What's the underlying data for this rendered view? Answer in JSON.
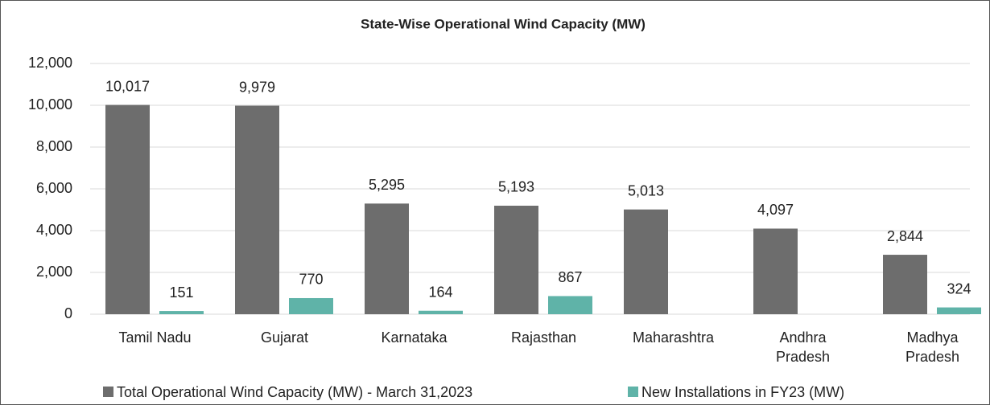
{
  "chart_data": {
    "type": "bar",
    "title": "State-Wise Operational Wind Capacity (MW)",
    "categories": [
      "Tamil Nadu",
      "Gujarat",
      "Karnataka",
      "Rajasthan",
      "Maharashtra",
      "Andhra\nPradesh",
      "Madhya\nPradesh"
    ],
    "series": [
      {
        "name": "Total Operational Wind Capacity (MW) - March 31,2023",
        "color": "#6d6d6d",
        "values": [
          10017,
          9979,
          5295,
          5193,
          5013,
          4097,
          2844
        ],
        "value_labels": [
          "10,017",
          "9,979",
          "5,295",
          "5,193",
          "5,013",
          "4,097",
          "2,844"
        ]
      },
      {
        "name": "New Installations in FY23 (MW)",
        "color": "#5fb3a8",
        "values": [
          151,
          770,
          164,
          867,
          null,
          null,
          324
        ]
      }
    ],
    "ylim": [
      0,
      12000
    ],
    "yticks": [
      0,
      {
        "value": 2000,
        "label": "2,000"
      },
      {
        "value": 4000,
        "label": "4,000"
      },
      {
        "value": 6000,
        "label": "6,000"
      },
      {
        "value": 8000,
        "label": "8,000"
      },
      {
        "value": 10000,
        "label": "10,000"
      },
      {
        "value": 12000,
        "label": "12,000"
      }
    ],
    "grid": true,
    "legend": "bottom"
  }
}
